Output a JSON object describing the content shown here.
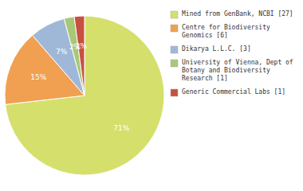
{
  "chart_data": {
    "type": "pie",
    "categories": [
      "Mined from GenBank, NCBI [27]",
      "Centre for Biodiversity\nGenomics [6]",
      "Dikarya L.L.C. [3]",
      "University of Vienna, Dept of\nBotany and Biodiversity\nResearch [1]",
      "Generic Commercial Labs [1]"
    ],
    "values": [
      71,
      15,
      7,
      2,
      2
    ],
    "value_labels": [
      "71%",
      "15%",
      "7%",
      "2%",
      "2%"
    ],
    "data_labels": true,
    "colors": [
      "#d4e06b",
      "#f0a050",
      "#a0b8d8",
      "#a8c878",
      "#c85040"
    ],
    "legend": "right"
  }
}
